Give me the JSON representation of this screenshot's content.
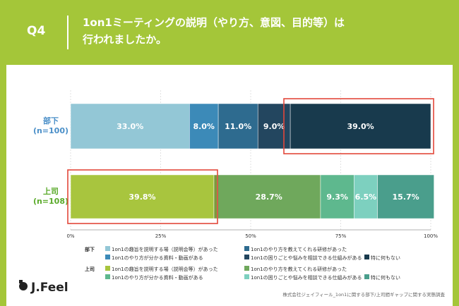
{
  "question": {
    "number": "Q4",
    "title_line1": "1on1ミーティングの説明（やり方、意図、目的等）は",
    "title_line2": "行われましたか。"
  },
  "brand": {
    "name": "J.Feel"
  },
  "source": "株式会社ジェイフィール_1on1に関する部下/上司間ギャップに関する実態調査",
  "colors": {
    "background": "#a4c639",
    "highlight": "#e2473a"
  },
  "chart_data": {
    "type": "bar",
    "orientation": "horizontal",
    "stacked": true,
    "categories": [
      {
        "label": "部下",
        "n": "(n=100)",
        "color": "#4a8fc8"
      },
      {
        "label": "上司",
        "n": "(n=108)",
        "color": "#5aaa2a"
      }
    ],
    "x_ticks": [
      "0%",
      "25%",
      "50%",
      "75%",
      "100%"
    ],
    "xlim": [
      0,
      100
    ],
    "groups": [
      {
        "category": "部下",
        "segments": [
          {
            "name": "1on1の趣旨を説明する場（説明会等）があった",
            "value": 33.0,
            "label": "33.0%",
            "color": "#93c7d6"
          },
          {
            "name": "1on1のやり方が分かる資料・動画がある",
            "value": 8.0,
            "label": "8.0%",
            "color": "#3c8ab8"
          },
          {
            "name": "1on1のやり方を教えてくれる研修があった",
            "value": 11.0,
            "label": "11.0%",
            "color": "#2e6b8f"
          },
          {
            "name": "1on1の困りごとや悩みを相談できる仕組みがある",
            "value": 9.0,
            "label": "9.0%",
            "color": "#23465f"
          },
          {
            "name": "特に何もない",
            "value": 39.0,
            "label": "39.0%",
            "color": "#183a4d"
          }
        ]
      },
      {
        "category": "上司",
        "segments": [
          {
            "name": "1on1の趣旨を説明する場（説明会等）があった",
            "value": 39.8,
            "label": "39.8%",
            "color": "#a8c53e"
          },
          {
            "name": "1on1のやり方を教えてくれる研修があった",
            "value": 0.9,
            "label": "",
            "color": "#7a9a3c"
          },
          {
            "name": "1on1のやり方が分かる資料・動画がある",
            "value": 28.7,
            "label": "28.7%",
            "color": "#6fa85c"
          },
          {
            "name": "1on1の困りごとや悩みを相談できる仕組みがある",
            "value": 9.3,
            "label": "9.3%",
            "color": "#5eb88e"
          },
          {
            "name": "1on1の困りごとや悩みを相談できる仕組みがある",
            "value": 6.5,
            "label": "6.5%",
            "color": "#7dd0bf"
          },
          {
            "name": "特に何もない",
            "value": 15.7,
            "label": "15.7%",
            "color": "#4a9e8c"
          }
        ]
      }
    ],
    "highlights": [
      {
        "category": "部下",
        "from": 60,
        "to": 100
      },
      {
        "category": "上司",
        "from": 0,
        "to": 40
      }
    ],
    "legend": [
      {
        "group": "部下",
        "rows": [
          [
            {
              "label": "1on1の趣旨を説明する場（説明会等）があった",
              "color": "#93c7d6"
            },
            {
              "label": "1on1のやり方を教えてくれる研修があった",
              "color": "#2e6b8f"
            }
          ],
          [
            {
              "label": "1on1のやり方が分かる資料・動画がある",
              "color": "#3c8ab8"
            },
            {
              "label": "1on1の困りごとや悩みを相談できる仕組みがある",
              "color": "#23465f"
            },
            {
              "label": "特に何もない",
              "color": "#183a4d"
            }
          ]
        ]
      },
      {
        "group": "上司",
        "rows": [
          [
            {
              "label": "1on1の趣旨を説明する場（説明会等）があった",
              "color": "#a8c53e"
            },
            {
              "label": "1on1のやり方を教えてくれる研修があった",
              "color": "#6fa85c"
            }
          ],
          [
            {
              "label": "1on1のやり方が分かる資料・動画がある",
              "color": "#5eb88e"
            },
            {
              "label": "1on1の困りごとや悩みを相談できる仕組みがある",
              "color": "#7dd0bf"
            },
            {
              "label": "特に何もない",
              "color": "#4a9e8c"
            }
          ]
        ]
      }
    ]
  }
}
